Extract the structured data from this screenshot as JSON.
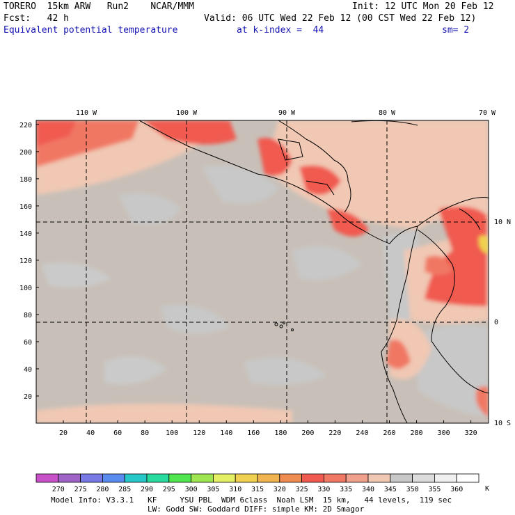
{
  "header": {
    "model": "TORERO  15km ARW   Run2    NCAR/MMM",
    "init": "Init: 12 UTC Mon 20 Feb 12",
    "fcst": "Fcst:   42 h",
    "valid": "Valid: 06 UTC Wed 22 Feb 12 (00 CST Wed 22 Feb 12)",
    "field": "Equivalent potential temperature",
    "level": "at k-index =  44",
    "smooth": "sm= 2"
  },
  "top_longitudes": [
    "110 W",
    "100 W",
    "90 W",
    "80 W",
    "70 W"
  ],
  "right_latitudes": [
    "10 N",
    "0",
    "10 S"
  ],
  "y_ticks": [
    "20",
    "40",
    "60",
    "80",
    "100",
    "120",
    "140",
    "160",
    "180",
    "200",
    "220"
  ],
  "x_ticks": [
    "20",
    "40",
    "60",
    "80",
    "100",
    "120",
    "140",
    "160",
    "180",
    "200",
    "220",
    "240",
    "260",
    "280",
    "300",
    "320"
  ],
  "colorbar": {
    "labels": [
      "270",
      "275",
      "280",
      "285",
      "290",
      "295",
      "300",
      "305",
      "310",
      "315",
      "320",
      "325",
      "330",
      "335",
      "340",
      "345",
      "350",
      "355",
      "360"
    ],
    "unit": "K",
    "colors": [
      "#c850c8",
      "#a064c8",
      "#7878e6",
      "#5a8cf0",
      "#28c8c8",
      "#28dca0",
      "#50e650",
      "#a0e650",
      "#e6f064",
      "#f0d250",
      "#f0b450",
      "#f08c50",
      "#f05a50",
      "#f07864",
      "#f0a08c",
      "#f0c8b4",
      "#c8c8c8",
      "#dcdcdc",
      "#f0f0f0",
      "#ffffff"
    ]
  },
  "footer": {
    "line1": "Model Info: V3.3.1   KF     YSU PBL  WDM 6class  Noah LSM  15 km,   44 levels,  119 sec",
    "line2": "LW: Godd SW: Goddard DIFF: simple KM: 2D Smagor"
  }
}
